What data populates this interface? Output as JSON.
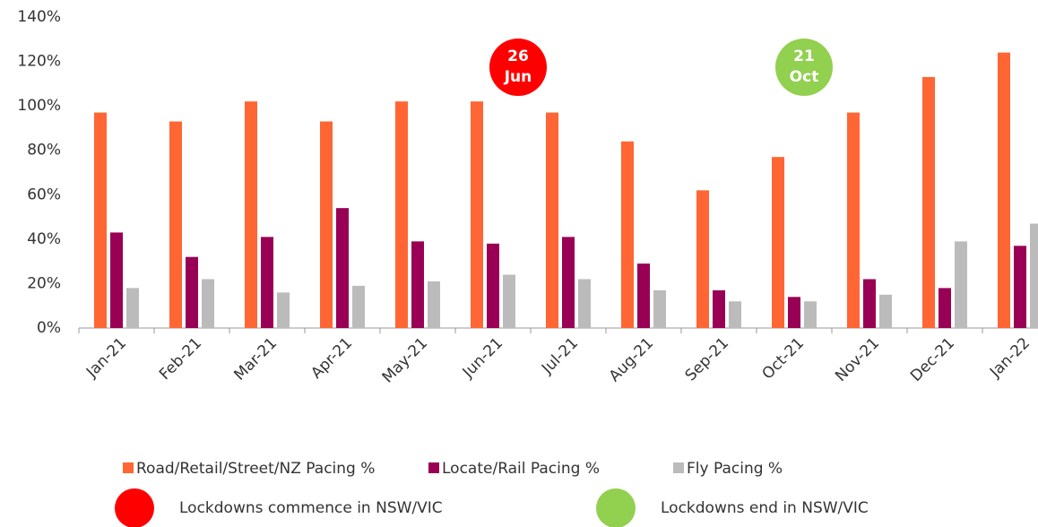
{
  "chart_data": {
    "type": "bar",
    "categories": [
      "Jan-21",
      "Feb-21",
      "Mar-21",
      "Apr-21",
      "May-21",
      "Jun-21",
      "Jul-21",
      "Aug-21",
      "Sep-21",
      "Oct-21",
      "Nov-21",
      "Dec-21",
      "Jan-22"
    ],
    "series": [
      {
        "name": "Road/Retail/Street/NZ Pacing %",
        "color": "#ff6633",
        "values": [
          97,
          93,
          102,
          93,
          102,
          102,
          97,
          84,
          62,
          77,
          97,
          113,
          124
        ]
      },
      {
        "name": "Locate/Rail Pacing %",
        "color": "#990055",
        "values": [
          43,
          32,
          41,
          54,
          39,
          38,
          41,
          29,
          17,
          14,
          22,
          18,
          37
        ]
      },
      {
        "name": "Fly Pacing %",
        "color": "#bbbbbb",
        "values": [
          18,
          22,
          16,
          19,
          21,
          24,
          22,
          17,
          12,
          12,
          15,
          39,
          47
        ]
      }
    ],
    "ylim": [
      0,
      140
    ],
    "yticks": [
      {
        "value": 0,
        "label": "0%"
      },
      {
        "value": 20,
        "label": "20%"
      },
      {
        "value": 40,
        "label": "40%"
      },
      {
        "value": 60,
        "label": "60%"
      },
      {
        "value": 80,
        "label": "80%"
      },
      {
        "value": 100,
        "label": "100%"
      },
      {
        "value": 120,
        "label": "120%"
      },
      {
        "value": 140,
        "label": "140%"
      }
    ],
    "legend": "bottom",
    "annotations": [
      {
        "line1": "26",
        "line2": "Jun",
        "color": "#ff0000",
        "description": "Lockdowns commence in NSW/VIC"
      },
      {
        "line1": "21",
        "line2": "Oct",
        "color": "#92d050",
        "description": "Lockdowns end in NSW/VIC"
      }
    ]
  }
}
